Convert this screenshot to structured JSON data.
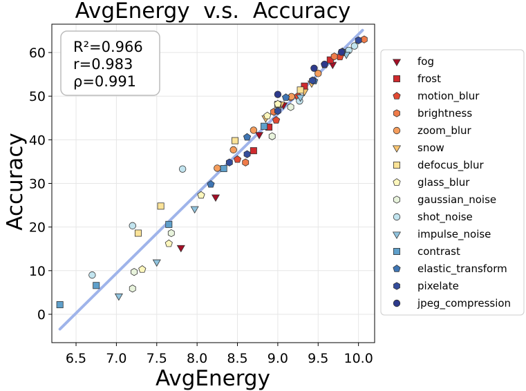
{
  "chart_data": {
    "type": "scatter",
    "title": "AvgEnergy  v.s.  Accuracy",
    "xlabel": "AvgEnergy",
    "ylabel": "Accuracy",
    "xlim": [
      6.2,
      10.2
    ],
    "ylim": [
      -6.5,
      66.5
    ],
    "xticks": [
      6.5,
      7.0,
      7.5,
      8.0,
      8.5,
      9.0,
      9.5,
      10.0
    ],
    "yticks": [
      0,
      10,
      20,
      30,
      40,
      50,
      60
    ],
    "grid": true,
    "legend_position": "right",
    "stats": [
      "R²=0.966",
      "r=0.983",
      "ρ=0.991"
    ],
    "fit_line": {
      "x": [
        6.3,
        10.05
      ],
      "y": [
        -3.4,
        65.1
      ],
      "color": "#9fb4ea"
    },
    "series": [
      {
        "name": "fog",
        "marker": "triangle-down",
        "color": "#a50f26",
        "x": [
          7.8,
          8.23,
          8.77,
          9.07,
          9.68
        ],
        "y": [
          15.3,
          26.9,
          41.2,
          48.0,
          57.3
        ]
      },
      {
        "name": "frost",
        "marker": "square",
        "color": "#cf2a2d",
        "x": [
          8.7,
          8.89,
          9.33,
          9.65,
          9.8
        ],
        "y": [
          37.5,
          42.9,
          52.3,
          58.3,
          60.0
        ]
      },
      {
        "name": "motion_blur",
        "marker": "pentagon",
        "color": "#e24a33",
        "x": [
          8.5,
          8.98,
          9.25,
          9.58,
          9.77
        ],
        "y": [
          35.5,
          44.5,
          50.0,
          57.2,
          59.0
        ]
      },
      {
        "name": "brightness",
        "marker": "hexagon",
        "color": "#ef7c4a",
        "x": [
          8.6,
          8.95,
          9.16,
          9.7,
          10.07
        ],
        "y": [
          34.8,
          46.4,
          49.7,
          59.1,
          63.0
        ]
      },
      {
        "name": "zoom_blur",
        "marker": "circle",
        "color": "#f59d5c",
        "x": [
          8.25,
          8.45,
          8.7,
          9.17,
          9.5
        ],
        "y": [
          33.5,
          37.7,
          42.2,
          49.9,
          55.2
        ]
      },
      {
        "name": "snow",
        "marker": "triangle-down",
        "color": "#f8c470",
        "x": [
          8.85,
          9.04,
          9.33,
          9.42
        ],
        "y": [
          45.0,
          48.2,
          51.1,
          53.0
        ]
      },
      {
        "name": "defocus_blur",
        "marker": "square",
        "color": "#fbe398",
        "x": [
          7.27,
          7.55,
          8.47,
          9.0,
          9.28
        ],
        "y": [
          18.6,
          24.8,
          39.8,
          48.1,
          51.4
        ]
      },
      {
        "name": "glass_blur",
        "marker": "pentagon",
        "color": "#fdf7bd",
        "x": [
          7.32,
          7.65,
          8.05,
          8.87,
          9.0
        ],
        "y": [
          10.3,
          16.2,
          27.3,
          45.5,
          48.2
        ]
      },
      {
        "name": "gaussian_noise",
        "marker": "hexagon",
        "color": "#e8f3dc",
        "x": [
          7.2,
          7.22,
          7.68,
          8.93,
          9.16
        ],
        "y": [
          5.9,
          9.7,
          18.6,
          40.8,
          47.5
        ]
      },
      {
        "name": "shot_noise",
        "marker": "circle",
        "color": "#c2e4ef",
        "x": [
          6.7,
          7.2,
          7.82,
          9.27,
          9.88,
          9.95
        ],
        "y": [
          9.0,
          20.3,
          33.3,
          48.9,
          60.5,
          61.5
        ]
      },
      {
        "name": "impulse_noise",
        "marker": "triangle-down",
        "color": "#90c3dd",
        "x": [
          7.03,
          7.5,
          7.97,
          9.28,
          9.85
        ],
        "y": [
          4.2,
          12.0,
          24.2,
          49.8,
          59.6
        ]
      },
      {
        "name": "contrast",
        "marker": "square",
        "color": "#5fa0cb",
        "x": [
          6.3,
          6.75,
          7.65,
          8.33,
          8.83
        ],
        "y": [
          2.2,
          6.6,
          20.6,
          33.4,
          43.1
        ]
      },
      {
        "name": "elastic_transform",
        "marker": "pentagon",
        "color": "#3f75b3",
        "x": [
          8.17,
          8.62,
          9.1,
          9.45,
          9.8
        ],
        "y": [
          29.8,
          40.6,
          49.7,
          53.5,
          60.2
        ]
      },
      {
        "name": "pixelate",
        "marker": "hexagon",
        "color": "#344d9b",
        "x": [
          8.4,
          8.62,
          9.0,
          9.43,
          10.0
        ],
        "y": [
          34.8,
          36.7,
          46.6,
          53.6,
          62.8
        ]
      },
      {
        "name": "jpeg_compression",
        "marker": "circle",
        "color": "#2d3a8c",
        "x": [
          9.0,
          9.45,
          9.58,
          9.79
        ],
        "y": [
          50.4,
          56.4,
          57.3,
          60.1
        ]
      }
    ]
  }
}
